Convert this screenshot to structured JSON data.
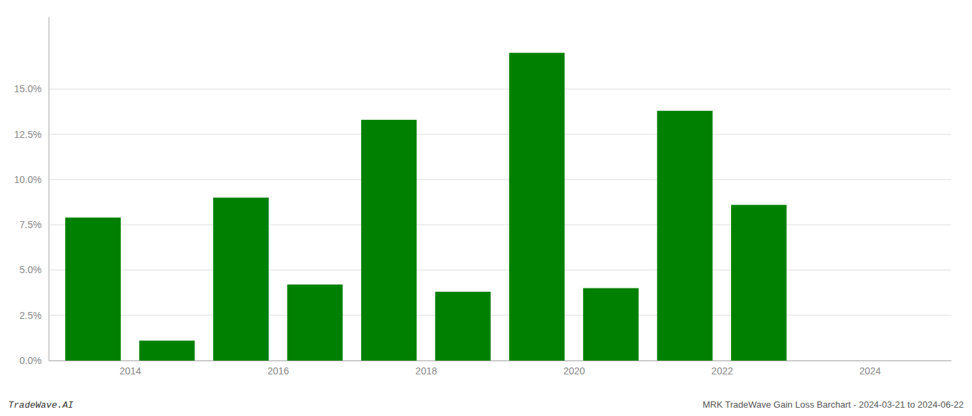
{
  "chart_data": {
    "type": "bar",
    "x": [
      2013,
      2014,
      2015,
      2016,
      2017,
      2018,
      2019,
      2020,
      2021,
      2022,
      2023
    ],
    "values": [
      0.079,
      0.011,
      0.09,
      0.042,
      0.133,
      0.038,
      0.17,
      0.04,
      0.138,
      0.086,
      0.0
    ],
    "color": "#008000",
    "xlim": [
      2012.4,
      2024.6
    ],
    "xticks": [
      {
        "value": 2013.5,
        "label": "2014"
      },
      {
        "value": 2015.5,
        "label": "2016"
      },
      {
        "value": 2017.5,
        "label": "2018"
      },
      {
        "value": 2019.5,
        "label": "2020"
      },
      {
        "value": 2021.5,
        "label": "2022"
      },
      {
        "value": 2023.5,
        "label": "2024"
      }
    ],
    "ylim": [
      0.0,
      0.19
    ],
    "yticks": [
      {
        "value": 0.0,
        "label": "0.0%"
      },
      {
        "value": 0.025,
        "label": "2.5%"
      },
      {
        "value": 0.05,
        "label": "5.0%"
      },
      {
        "value": 0.075,
        "label": "7.5%"
      },
      {
        "value": 0.1,
        "label": "10.0%"
      },
      {
        "value": 0.125,
        "label": "12.5%"
      },
      {
        "value": 0.15,
        "label": "15.0%"
      }
    ],
    "grid": true,
    "annotations": [
      "TradeWave.AI",
      "MRK TradeWave Gain Loss Barchart - 2024-03-21 to 2024-06-22"
    ]
  }
}
